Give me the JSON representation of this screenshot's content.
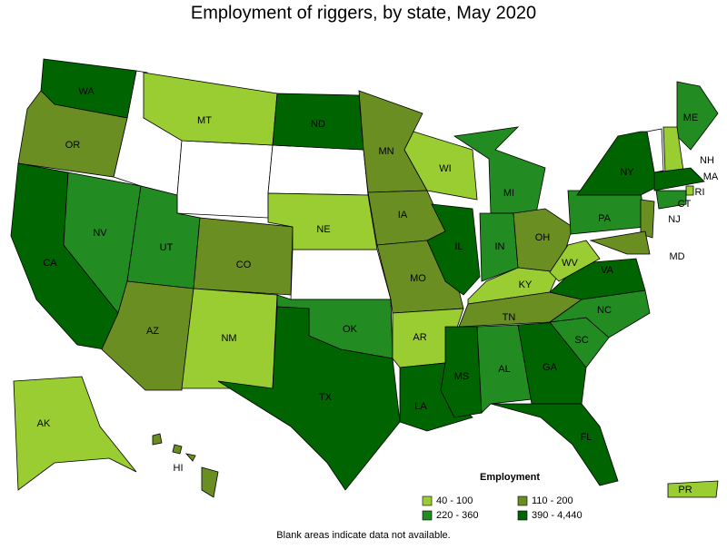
{
  "title": "Employment of riggers, by state, May 2020",
  "legend": {
    "title": "Employment",
    "items": [
      {
        "label": "40 - 100",
        "color": "#9acd32"
      },
      {
        "label": "110 - 200",
        "color": "#6b8e23"
      },
      {
        "label": "220 - 360",
        "color": "#228b22"
      },
      {
        "label": "390 - 4,440",
        "color": "#006400"
      }
    ]
  },
  "states": [
    {
      "label": "WA",
      "class": 3
    },
    {
      "label": "OR",
      "class": 1
    },
    {
      "label": "CA",
      "class": 3
    },
    {
      "label": "NV",
      "class": 2
    },
    {
      "label": "MT",
      "class": 0
    },
    {
      "label": "UT",
      "class": 2
    },
    {
      "label": "CO",
      "class": 1
    },
    {
      "label": "AZ",
      "class": 1
    },
    {
      "label": "NM",
      "class": 0
    },
    {
      "label": "ND",
      "class": 3
    },
    {
      "label": "NE",
      "class": 0
    },
    {
      "label": "OK",
      "class": 2
    },
    {
      "label": "TX",
      "class": 3
    },
    {
      "label": "MN",
      "class": 1
    },
    {
      "label": "IA",
      "class": 1
    },
    {
      "label": "MO",
      "class": 1
    },
    {
      "label": "AR",
      "class": 0
    },
    {
      "label": "LA",
      "class": 3
    },
    {
      "label": "WI",
      "class": 0
    },
    {
      "label": "IL",
      "class": 3
    },
    {
      "label": "MI",
      "class": 2
    },
    {
      "label": "IN",
      "class": 2
    },
    {
      "label": "OH",
      "class": 1
    },
    {
      "label": "KY",
      "class": 0
    },
    {
      "label": "TN",
      "class": 1
    },
    {
      "label": "MS",
      "class": 3
    },
    {
      "label": "AL",
      "class": 2
    },
    {
      "label": "GA",
      "class": 3
    },
    {
      "label": "FL",
      "class": 3
    },
    {
      "label": "SC",
      "class": 2
    },
    {
      "label": "NC",
      "class": 2
    },
    {
      "label": "VA",
      "class": 3
    },
    {
      "label": "WV",
      "class": 0
    },
    {
      "label": "PA",
      "class": 2
    },
    {
      "label": "NY",
      "class": 3
    },
    {
      "label": "ME",
      "class": 2
    },
    {
      "label": "NH",
      "class": 0
    },
    {
      "label": "MA",
      "class": 3
    },
    {
      "label": "RI",
      "class": 0
    },
    {
      "label": "CT",
      "class": 2
    },
    {
      "label": "NJ",
      "class": 1
    },
    {
      "label": "MD",
      "class": 1
    },
    {
      "label": "AK",
      "class": 0
    },
    {
      "label": "HI",
      "class": 1
    },
    {
      "label": "PR",
      "class": 0
    }
  ],
  "note": "Blank areas indicate data not available."
}
